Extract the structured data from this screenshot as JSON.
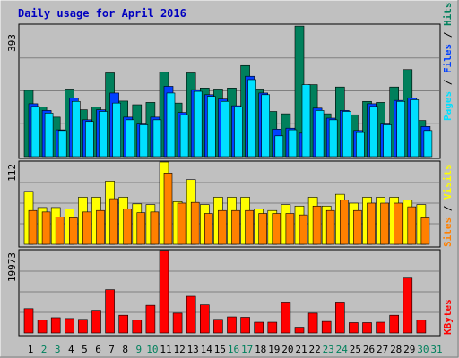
{
  "title": "Daily usage for April 2016",
  "colors": {
    "title": "#0000c0",
    "hits": "#00805c",
    "files": "#0040ff",
    "pages": "#00e0ff",
    "visits": "#ffff00",
    "sites": "#ff8000",
    "kbytes": "#ff0000",
    "plot_bg": "#c0c0c0",
    "weekend_label": "#00805c",
    "weekday_label": "#000000"
  },
  "chart_data": [
    {
      "type": "bar",
      "panel": "top",
      "ymax_label": "393",
      "ylim": [
        0,
        393
      ],
      "right_labels": [
        "Pages",
        "Files",
        "Hits"
      ],
      "categories": [
        "1",
        "2",
        "3",
        "4",
        "5",
        "6",
        "7",
        "8",
        "9",
        "10",
        "11",
        "12",
        "13",
        "14",
        "15",
        "16",
        "17",
        "18",
        "19",
        "20",
        "21",
        "22",
        "23",
        "24",
        "25",
        "26",
        "27",
        "28",
        "29",
        "30",
        "31"
      ],
      "series": [
        {
          "name": "Hits",
          "values": [
            198,
            148,
            118,
            202,
            140,
            148,
            250,
            166,
            155,
            162,
            252,
            160,
            250,
            205,
            202,
            205,
            272,
            202,
            135,
            128,
            390,
            215,
            128,
            208,
            125,
            165,
            162,
            208,
            260,
            108,
            0
          ]
        },
        {
          "name": "Files",
          "values": [
            158,
            138,
            80,
            175,
            110,
            140,
            190,
            118,
            100,
            118,
            210,
            132,
            200,
            185,
            172,
            152,
            240,
            190,
            82,
            85,
            70,
            145,
            115,
            138,
            78,
            158,
            100,
            168,
            175,
            90,
            0
          ]
        },
        {
          "name": "Pages",
          "values": [
            150,
            130,
            78,
            165,
            105,
            135,
            160,
            110,
            95,
            110,
            190,
            125,
            195,
            180,
            165,
            148,
            230,
            185,
            62,
            80,
            215,
            138,
            110,
            135,
            72,
            150,
            95,
            165,
            170,
            78,
            0
          ]
        }
      ]
    },
    {
      "type": "bar",
      "panel": "middle",
      "ymax_label": "112",
      "ylim": [
        0,
        112
      ],
      "right_labels": [
        "Sites",
        "Visits"
      ],
      "categories": [
        "1",
        "2",
        "3",
        "4",
        "5",
        "6",
        "7",
        "8",
        "9",
        "10",
        "11",
        "12",
        "13",
        "14",
        "15",
        "16",
        "17",
        "18",
        "19",
        "20",
        "21",
        "22",
        "23",
        "24",
        "25",
        "26",
        "27",
        "28",
        "29",
        "30",
        "31"
      ],
      "series": [
        {
          "name": "Visits",
          "values": [
            72,
            50,
            50,
            48,
            64,
            64,
            86,
            64,
            55,
            54,
            112,
            58,
            88,
            54,
            64,
            64,
            64,
            48,
            46,
            54,
            52,
            64,
            52,
            68,
            56,
            64,
            64,
            64,
            60,
            54,
            0
          ]
        },
        {
          "name": "Sites",
          "values": [
            46,
            44,
            37,
            36,
            44,
            46,
            62,
            48,
            43,
            44,
            97,
            56,
            57,
            42,
            46,
            46,
            46,
            42,
            42,
            42,
            40,
            52,
            46,
            60,
            46,
            56,
            56,
            56,
            51,
            36,
            0
          ]
        }
      ]
    },
    {
      "type": "bar",
      "panel": "bottom",
      "ymax_label": "19973",
      "ylim": [
        0,
        19973
      ],
      "right_labels": [
        "KBytes"
      ],
      "categories": [
        "1",
        "2",
        "3",
        "4",
        "5",
        "6",
        "7",
        "8",
        "9",
        "10",
        "11",
        "12",
        "13",
        "14",
        "15",
        "16",
        "17",
        "18",
        "19",
        "20",
        "21",
        "22",
        "23",
        "24",
        "25",
        "26",
        "27",
        "28",
        "29",
        "30",
        "31"
      ],
      "series": [
        {
          "name": "KBytes",
          "values": [
            5900,
            3100,
            3700,
            3500,
            3300,
            5500,
            10500,
            4300,
            3100,
            6700,
            19973,
            4800,
            8900,
            6800,
            3300,
            3900,
            3800,
            2600,
            2600,
            7500,
            1400,
            4800,
            2800,
            7500,
            2500,
            2500,
            2600,
            4300,
            13300,
            3100,
            0
          ]
        }
      ]
    }
  ],
  "x_labels": [
    "1",
    "2",
    "3",
    "4",
    "5",
    "6",
    "7",
    "8",
    "9",
    "10",
    "11",
    "12",
    "13",
    "14",
    "15",
    "16",
    "17",
    "18",
    "19",
    "20",
    "21",
    "22",
    "23",
    "24",
    "25",
    "26",
    "27",
    "28",
    "29",
    "30",
    "31"
  ],
  "weekend_days": [
    2,
    3,
    9,
    10,
    16,
    17,
    23,
    24,
    30,
    31
  ]
}
